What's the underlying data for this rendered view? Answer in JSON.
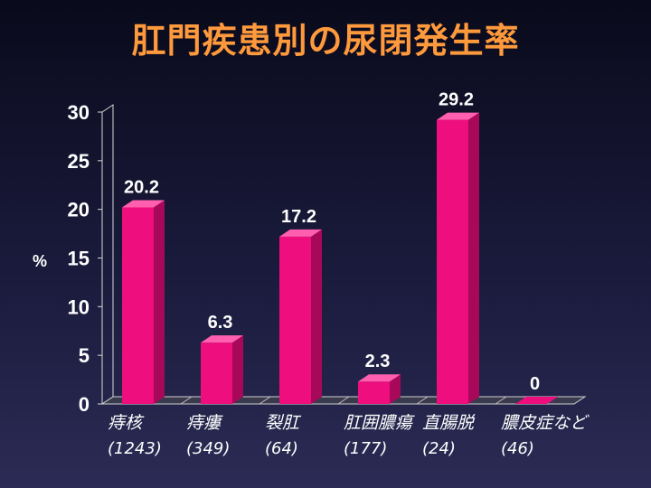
{
  "title": "肛門疾患別の尿閉発生率",
  "chart_data": {
    "type": "bar",
    "title": "肛門疾患別の尿閉発生率",
    "ylabel": "%",
    "xlabel": "",
    "ylim": [
      0,
      30
    ],
    "yticks": [
      0,
      5,
      10,
      15,
      20,
      25,
      30
    ],
    "grid": false,
    "categories": [
      {
        "name": "痔核",
        "n": "(1243)"
      },
      {
        "name": "痔瘻",
        "n": "(349)"
      },
      {
        "name": "裂肛",
        "n": "(64)"
      },
      {
        "name": "肛囲膿瘍",
        "n": "(177)"
      },
      {
        "name": "直腸脱",
        "n": "(24)"
      },
      {
        "name": "膿皮症など",
        "n": "(46)"
      }
    ],
    "values": [
      20.2,
      6.3,
      17.2,
      2.3,
      29.2,
      0
    ],
    "value_labels": [
      "20.2",
      "6.3",
      "17.2",
      "2.3",
      "29.2",
      "0"
    ],
    "colors": {
      "bar": "#ee0e7e",
      "bar_side": "#a8085a",
      "bar_top": "#ff5fae",
      "text": "#ffffff"
    }
  }
}
